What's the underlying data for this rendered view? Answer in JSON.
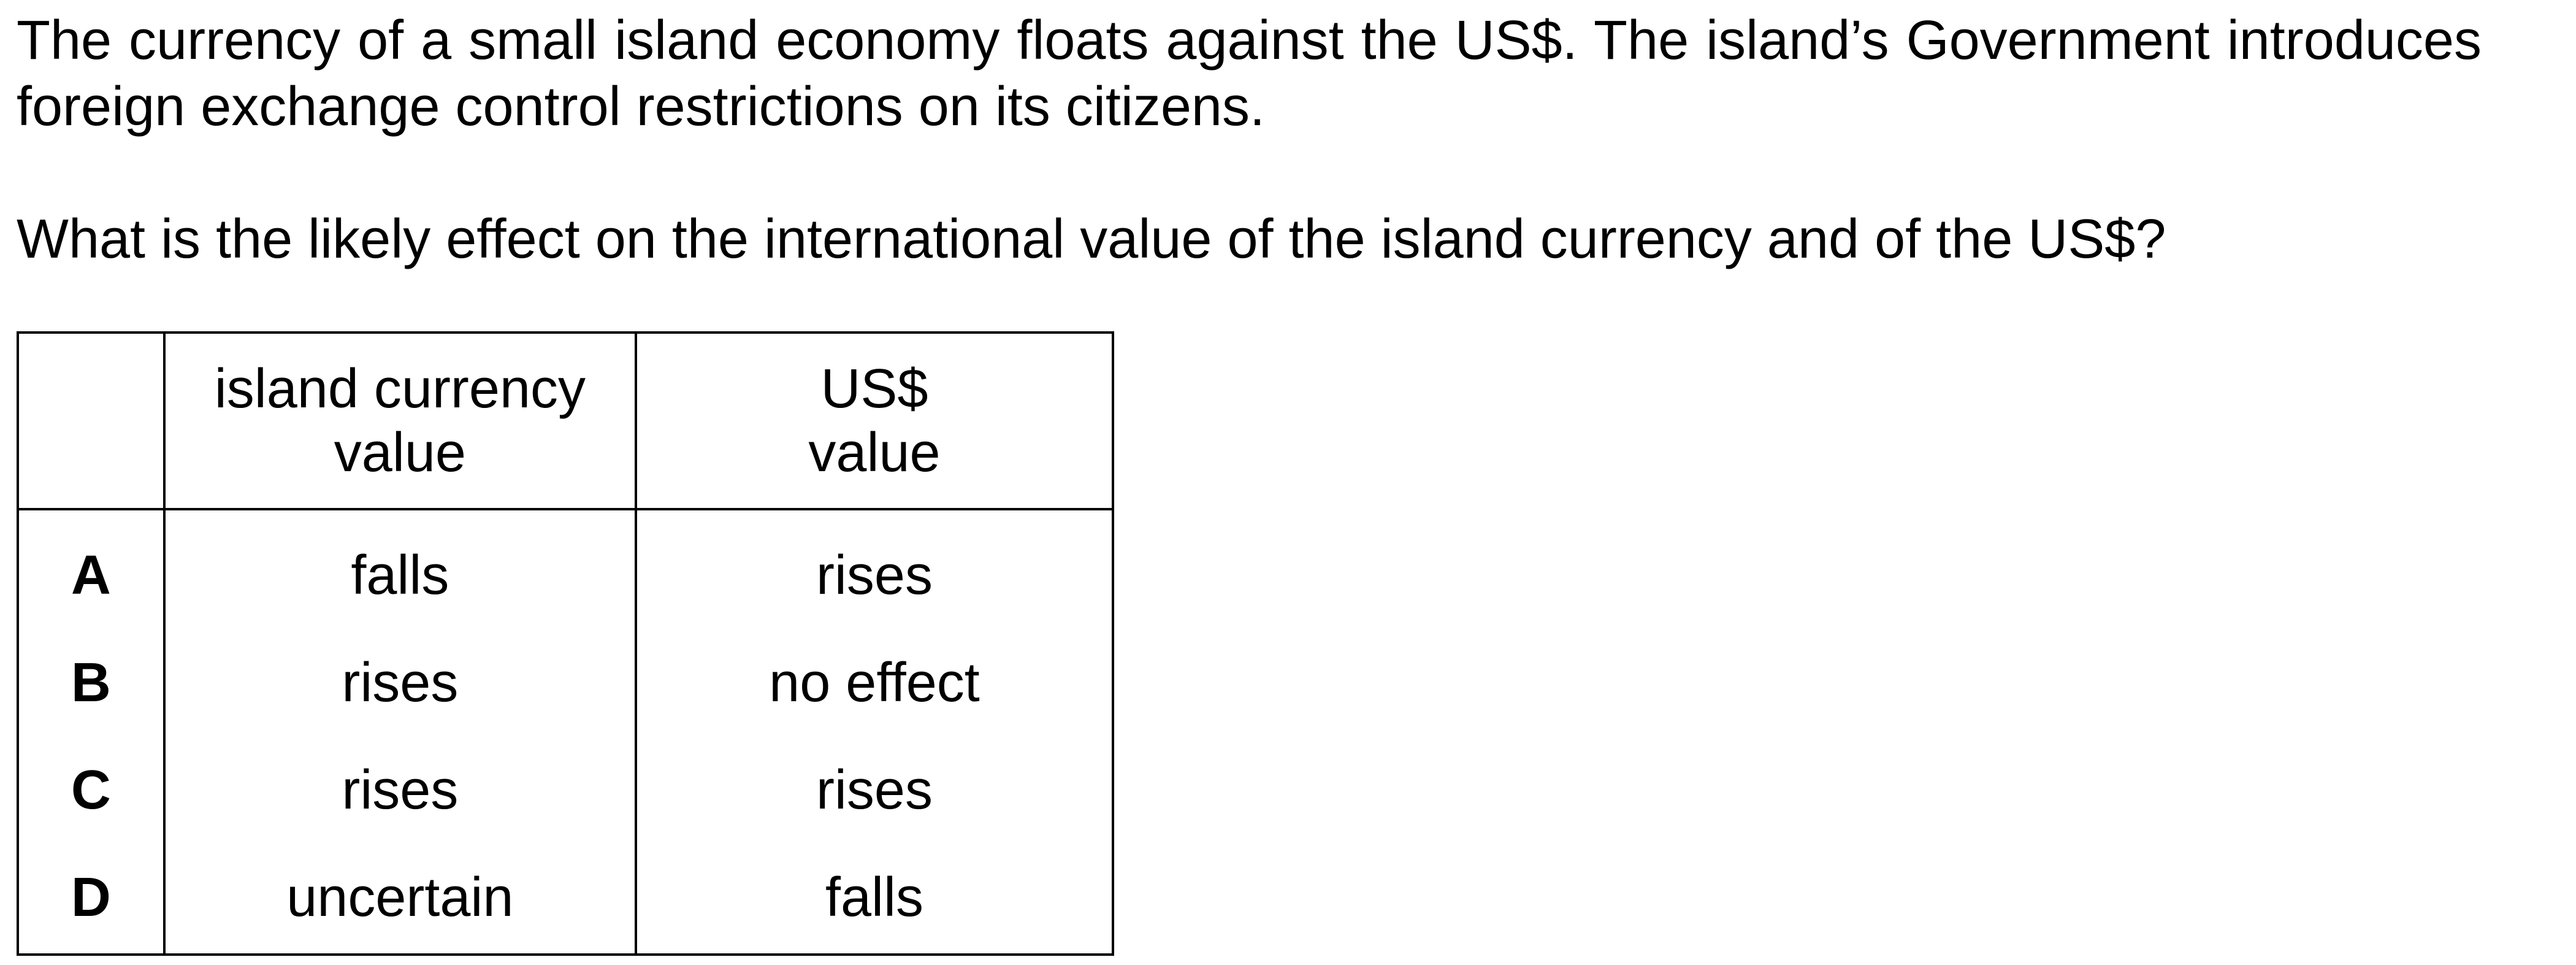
{
  "question": {
    "stem": "The currency of a small island economy floats against the US$. The island’s Government introduces foreign exchange control restrictions on its citizens.",
    "prompt": "What is the likely effect on the international value of the island currency and of the US$?"
  },
  "table": {
    "headers": {
      "letter": "",
      "island_line1": "island currency",
      "island_line2": "value",
      "usd_line1": "US$",
      "usd_line2": "value"
    },
    "rows": [
      {
        "option": "A",
        "island": "falls",
        "usd": "rises"
      },
      {
        "option": "B",
        "island": "rises",
        "usd": "no effect"
      },
      {
        "option": "C",
        "island": "rises",
        "usd": "rises"
      },
      {
        "option": "D",
        "island": "uncertain",
        "usd": "falls"
      }
    ]
  }
}
